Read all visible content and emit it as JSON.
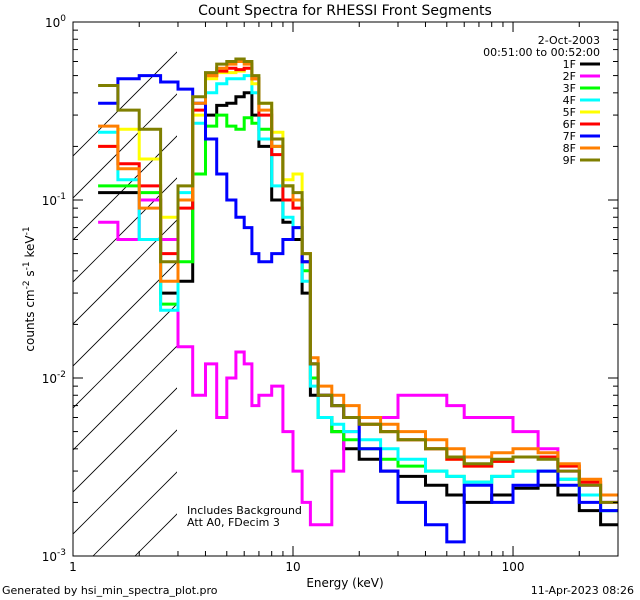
{
  "chart_data": {
    "type": "line",
    "title": "Count Spectra for RHESSI Front Segments",
    "xlabel": "Energy (keV)",
    "ylabel": "counts cm^-2 s^-1 keV^-1",
    "xscale": "log",
    "yscale": "log",
    "xlim": [
      1,
      300
    ],
    "ylim": [
      0.001,
      1
    ],
    "x_ticks": [
      {
        "value": 1,
        "label": "1"
      },
      {
        "value": 10,
        "label": "10"
      },
      {
        "value": 100,
        "label": "100"
      }
    ],
    "y_ticks": [
      {
        "value": 1,
        "base": "10",
        "exp": "0"
      },
      {
        "value": 0.1,
        "base": "10",
        "exp": "-1"
      },
      {
        "value": 0.01,
        "base": "10",
        "exp": "-2"
      },
      {
        "value": 0.001,
        "base": "10",
        "exp": "-3"
      }
    ],
    "hatched_region": {
      "x_from": 1,
      "x_to": 3
    },
    "date": "2-Oct-2003",
    "time_range": "00:51:00 to 00:52:00",
    "annotations": [
      "Includes Background",
      "Att A0, FDecim 3"
    ],
    "energy_bins_keV": [
      1.3,
      1.6,
      2.0,
      2.5,
      3.0,
      3.5,
      4.0,
      4.5,
      5.0,
      5.5,
      6.0,
      6.5,
      7.0,
      8.0,
      9.0,
      10.0,
      11.0,
      12.0,
      13.0,
      15.0,
      17.0,
      20.0,
      25.0,
      30.0,
      40.0,
      50.0,
      60.0,
      80.0,
      100.0,
      130.0,
      160.0,
      200.0,
      250.0,
      300.0
    ],
    "series": [
      {
        "name": "1F",
        "color": "#000000",
        "values": [
          0.11,
          0.11,
          0.1,
          0.03,
          0.035,
          0.14,
          0.3,
          0.34,
          0.35,
          0.38,
          0.4,
          0.3,
          0.2,
          0.1,
          0.075,
          0.06,
          0.03,
          0.008,
          0.006,
          0.005,
          0.004,
          0.0035,
          0.003,
          0.0028,
          0.0025,
          0.0022,
          0.002,
          0.0022,
          0.0024,
          0.0025,
          0.0022,
          0.0018,
          0.0015,
          0.0013
        ]
      },
      {
        "name": "2F",
        "color": "#ff00ff",
        "values": [
          0.075,
          0.06,
          0.1,
          0.06,
          0.015,
          0.008,
          0.012,
          0.006,
          0.01,
          0.014,
          0.012,
          0.007,
          0.008,
          0.009,
          0.005,
          0.003,
          0.002,
          0.0015,
          0.0015,
          0.003,
          0.005,
          0.006,
          0.006,
          0.008,
          0.008,
          0.007,
          0.006,
          0.006,
          0.005,
          0.004,
          0.003,
          0.0025,
          0.002,
          0.0015
        ]
      },
      {
        "name": "3F",
        "color": "#00ff00",
        "values": [
          0.12,
          0.12,
          0.11,
          0.026,
          0.045,
          0.14,
          0.26,
          0.3,
          0.26,
          0.25,
          0.29,
          0.27,
          0.25,
          0.2,
          0.12,
          0.1,
          0.04,
          0.01,
          0.006,
          0.005,
          0.0045,
          0.004,
          0.0035,
          0.0032,
          0.003,
          0.0028,
          0.0026,
          0.0028,
          0.003,
          0.003,
          0.0027,
          0.0022,
          0.0018,
          0.0015
        ]
      },
      {
        "name": "4F",
        "color": "#00ffff",
        "values": [
          0.24,
          0.13,
          0.06,
          0.024,
          0.11,
          0.27,
          0.4,
          0.45,
          0.48,
          0.48,
          0.5,
          0.4,
          0.22,
          0.12,
          0.08,
          0.07,
          0.035,
          0.009,
          0.006,
          0.0055,
          0.005,
          0.0045,
          0.004,
          0.0035,
          0.003,
          0.0028,
          0.0026,
          0.0028,
          0.003,
          0.003,
          0.0027,
          0.0022,
          0.0018,
          0.0015
        ]
      },
      {
        "name": "5F",
        "color": "#ffff00",
        "values": [
          0.2,
          0.25,
          0.17,
          0.08,
          0.1,
          0.3,
          0.48,
          0.52,
          0.52,
          0.53,
          0.55,
          0.45,
          0.35,
          0.24,
          0.13,
          0.14,
          0.05,
          0.012,
          0.008,
          0.007,
          0.006,
          0.0055,
          0.005,
          0.0045,
          0.004,
          0.0035,
          0.0032,
          0.0034,
          0.0036,
          0.0036,
          0.0032,
          0.0026,
          0.0022,
          0.0018
        ]
      },
      {
        "name": "6F",
        "color": "#ff0000",
        "values": [
          0.2,
          0.16,
          0.12,
          0.05,
          0.09,
          0.32,
          0.5,
          0.53,
          0.55,
          0.54,
          0.55,
          0.48,
          0.3,
          0.18,
          0.1,
          0.09,
          0.045,
          0.012,
          0.008,
          0.007,
          0.006,
          0.0055,
          0.005,
          0.0045,
          0.004,
          0.0035,
          0.0032,
          0.0034,
          0.0036,
          0.0036,
          0.0032,
          0.0026,
          0.0022,
          0.0018
        ]
      },
      {
        "name": "7F",
        "color": "#0000ff",
        "values": [
          0.35,
          0.48,
          0.5,
          0.46,
          0.42,
          0.35,
          0.22,
          0.14,
          0.1,
          0.08,
          0.07,
          0.05,
          0.045,
          0.05,
          0.06,
          0.07,
          0.045,
          0.012,
          0.008,
          0.007,
          0.006,
          0.004,
          0.003,
          0.002,
          0.0015,
          0.0012,
          0.0025,
          0.002,
          0.0025,
          0.003,
          0.0025,
          0.002,
          0.0018,
          0.0015
        ]
      },
      {
        "name": "8F",
        "color": "#ff7f00",
        "values": [
          0.26,
          0.15,
          0.09,
          0.035,
          0.1,
          0.35,
          0.5,
          0.55,
          0.58,
          0.6,
          0.58,
          0.48,
          0.32,
          0.2,
          0.12,
          0.1,
          0.05,
          0.013,
          0.009,
          0.008,
          0.007,
          0.006,
          0.0055,
          0.005,
          0.0045,
          0.004,
          0.0036,
          0.0038,
          0.004,
          0.0038,
          0.0033,
          0.0027,
          0.0022,
          0.0018
        ]
      },
      {
        "name": "9F",
        "color": "#7f7f00",
        "values": [
          0.44,
          0.32,
          0.25,
          0.045,
          0.12,
          0.38,
          0.52,
          0.58,
          0.6,
          0.62,
          0.6,
          0.5,
          0.35,
          0.22,
          0.12,
          0.11,
          0.05,
          0.012,
          0.008,
          0.007,
          0.006,
          0.0055,
          0.005,
          0.0045,
          0.004,
          0.0036,
          0.0033,
          0.0035,
          0.0036,
          0.0035,
          0.003,
          0.0025,
          0.002,
          0.0016
        ]
      }
    ]
  },
  "footer": {
    "generated_by": "Generated by hsi_min_spectra_plot.pro",
    "timestamp": "11-Apr-2023 08:26"
  }
}
